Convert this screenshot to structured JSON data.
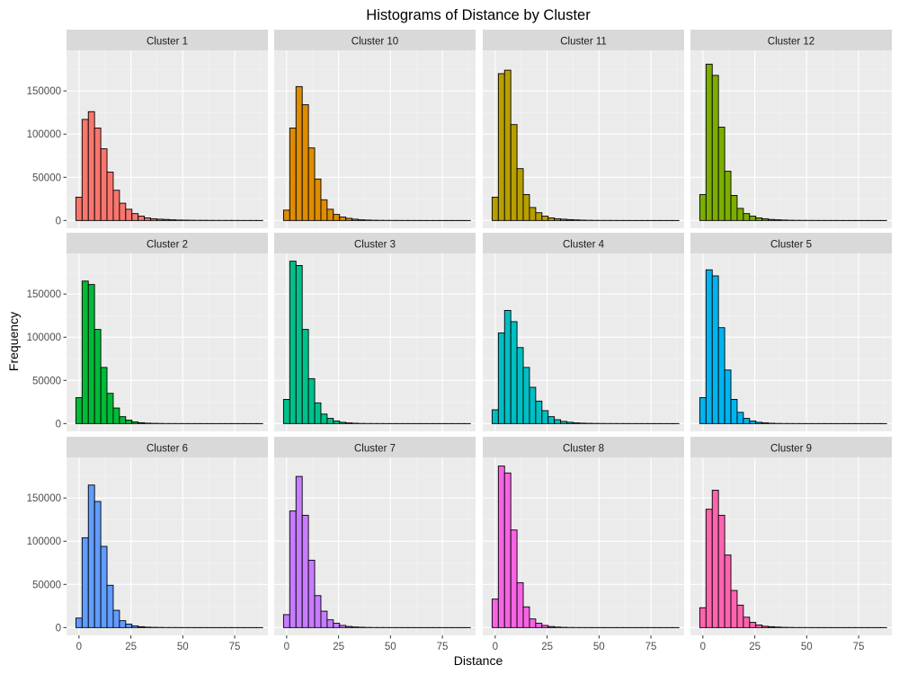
{
  "chart_data": {
    "type": "bar",
    "title": "Histograms of Distance by Cluster",
    "xlabel": "Distance",
    "ylabel": "Frequency",
    "xlim": [
      -6,
      91
    ],
    "ylim": [
      -9000,
      197000
    ],
    "x_ticks": [
      0,
      25,
      50,
      75
    ],
    "y_ticks": [
      0,
      50000,
      100000,
      150000
    ],
    "x_tick_labels": [
      "0",
      "25",
      "50",
      "75"
    ],
    "y_tick_labels": [
      "0",
      "50000",
      "100000",
      "150000"
    ],
    "grid": true,
    "legend": "none",
    "bin_width": 3,
    "bin_starts": [
      -1.5,
      1.5,
      4.5,
      7.5,
      10.5,
      13.5,
      16.5,
      19.5,
      22.5,
      25.5,
      28.5,
      31.5,
      34.5,
      37.5,
      40.5,
      43.5,
      46.5,
      49.5,
      52.5,
      55.5,
      58.5,
      61.5,
      64.5,
      67.5,
      70.5,
      73.5,
      76.5,
      79.5,
      82.5,
      85.5
    ],
    "facets": [
      {
        "label": "Cluster 1",
        "color": "#F8766D",
        "values": [
          27000,
          117000,
          126000,
          107000,
          83000,
          56000,
          35000,
          20000,
          13000,
          8000,
          5000,
          3000,
          2000,
          1500,
          1200,
          800,
          500,
          400,
          300,
          200,
          200,
          150,
          100,
          100,
          100,
          80,
          60,
          50,
          40,
          30
        ]
      },
      {
        "label": "Cluster 10",
        "color": "#DE8C00",
        "values": [
          12000,
          107000,
          155000,
          134000,
          84000,
          48000,
          24000,
          13000,
          7000,
          4000,
          2500,
          1500,
          800,
          500,
          300,
          200,
          150,
          100,
          80,
          60,
          50,
          40,
          30,
          20,
          20,
          10,
          10,
          10,
          10,
          10
        ]
      },
      {
        "label": "Cluster 11",
        "color": "#B79F00",
        "values": [
          27000,
          170000,
          174000,
          111000,
          60000,
          30000,
          15000,
          9000,
          5000,
          3000,
          2000,
          1500,
          1000,
          700,
          400,
          250,
          150,
          100,
          80,
          60,
          50,
          40,
          30,
          20,
          20,
          10,
          10,
          10,
          10,
          10
        ]
      },
      {
        "label": "Cluster 12",
        "color": "#7CAE00",
        "values": [
          30000,
          181000,
          168000,
          108000,
          57000,
          29000,
          14000,
          8000,
          5000,
          3000,
          2000,
          1200,
          800,
          500,
          300,
          200,
          150,
          100,
          80,
          60,
          50,
          40,
          30,
          20,
          20,
          10,
          10,
          10,
          10,
          10
        ]
      },
      {
        "label": "Cluster 2",
        "color": "#00BA38",
        "values": [
          30000,
          165000,
          161000,
          109000,
          65000,
          35000,
          18000,
          8000,
          4000,
          2000,
          1000,
          500,
          300,
          200,
          100,
          80,
          60,
          40,
          30,
          20,
          20,
          10,
          10,
          10,
          10,
          10,
          10,
          10,
          10,
          10
        ]
      },
      {
        "label": "Cluster 3",
        "color": "#00C08B",
        "values": [
          28000,
          188000,
          183000,
          109000,
          52000,
          24000,
          11000,
          6000,
          3000,
          1500,
          800,
          400,
          200,
          100,
          80,
          60,
          40,
          30,
          20,
          20,
          10,
          10,
          10,
          10,
          10,
          10,
          10,
          10,
          10,
          10
        ]
      },
      {
        "label": "Cluster 4",
        "color": "#00BFC4",
        "values": [
          16000,
          105000,
          131000,
          118000,
          88000,
          65000,
          42000,
          26000,
          15000,
          8000,
          4500,
          2500,
          1500,
          800,
          500,
          300,
          200,
          150,
          100,
          80,
          60,
          50,
          40,
          30,
          20,
          20,
          10,
          10,
          10,
          10
        ]
      },
      {
        "label": "Cluster 5",
        "color": "#00B4F0",
        "values": [
          30000,
          178000,
          171000,
          111000,
          62000,
          28000,
          13000,
          6000,
          3000,
          1500,
          800,
          400,
          200,
          100,
          80,
          60,
          40,
          30,
          20,
          20,
          10,
          10,
          10,
          10,
          10,
          10,
          10,
          10,
          10,
          10
        ]
      },
      {
        "label": "Cluster 6",
        "color": "#619CFF",
        "values": [
          11000,
          104000,
          165000,
          146000,
          94000,
          49000,
          20000,
          8000,
          4000,
          2000,
          1000,
          500,
          300,
          200,
          100,
          80,
          60,
          40,
          30,
          20,
          20,
          10,
          10,
          10,
          10,
          10,
          10,
          10,
          10,
          10
        ]
      },
      {
        "label": "Cluster 7",
        "color": "#C77CFF",
        "values": [
          15000,
          135000,
          175000,
          130000,
          78000,
          37000,
          19000,
          9000,
          5000,
          2500,
          1300,
          700,
          400,
          200,
          100,
          80,
          60,
          40,
          30,
          20,
          20,
          10,
          10,
          10,
          10,
          10,
          10,
          10,
          10,
          10
        ]
      },
      {
        "label": "Cluster 8",
        "color": "#F564E3",
        "values": [
          33000,
          187000,
          179000,
          113000,
          52000,
          24000,
          10000,
          5000,
          2500,
          1200,
          600,
          300,
          150,
          100,
          60,
          40,
          30,
          20,
          20,
          10,
          10,
          10,
          10,
          10,
          10,
          10,
          10,
          10,
          10,
          10
        ]
      },
      {
        "label": "Cluster 9",
        "color": "#FF64B0",
        "values": [
          23000,
          137000,
          159000,
          130000,
          84000,
          43000,
          26000,
          12000,
          6000,
          3000,
          1500,
          1000,
          600,
          300,
          200,
          100,
          80,
          60,
          40,
          30,
          20,
          20,
          10,
          10,
          10,
          10,
          10,
          10,
          10,
          10
        ]
      }
    ]
  }
}
